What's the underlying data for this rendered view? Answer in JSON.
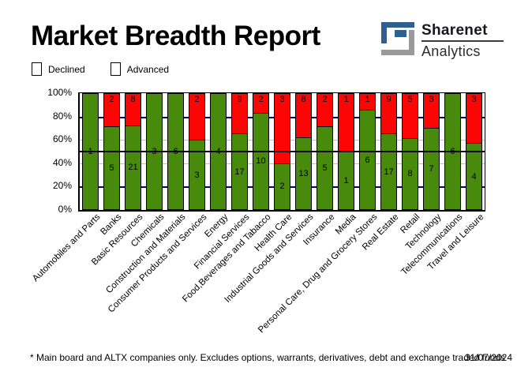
{
  "header": {
    "title": "Market Breadth Report",
    "logo": {
      "name": "Sharenet",
      "sub": "Analytics",
      "mark_blue": "#2e5f8e",
      "mark_gray": "#9a9a9a"
    }
  },
  "legend": {
    "items": [
      {
        "label": "Declined",
        "color": "#fb0505"
      },
      {
        "label": "Advanced",
        "color": "#478a0c"
      }
    ]
  },
  "chart_data": {
    "type": "bar",
    "stacked": true,
    "unit": "percent of companies (advanced vs declined), segment labels show counts",
    "categories": [
      "Automobiles and Parts",
      "Banks",
      "Basic Resources",
      "Chemicals",
      "Construction and Materials",
      "Consumer Products and Services",
      "Energy",
      "Financial Services",
      "Food,Beverages and Tabacco",
      "Health Care",
      "Industrial Goods and Services",
      "Insurance",
      "Media",
      "Personal Care, Drug and Grocery Stores",
      "Real Estate",
      "Retail",
      "Technology",
      "Telecommunications",
      "Travel and Leisure"
    ],
    "series": [
      {
        "name": "Declined",
        "color": "#fb0505",
        "values": [
          0,
          2,
          8,
          0,
          0,
          2,
          0,
          9,
          2,
          3,
          8,
          2,
          1,
          1,
          9,
          5,
          3,
          0,
          3
        ]
      },
      {
        "name": "Advanced",
        "color": "#478a0c",
        "values": [
          1,
          5,
          21,
          3,
          6,
          3,
          4,
          17,
          10,
          2,
          13,
          5,
          1,
          6,
          17,
          8,
          7,
          6,
          4
        ]
      }
    ],
    "ylim": [
      0,
      100
    ],
    "ytick_labels": [
      "0%",
      "20%",
      "40%",
      "60%",
      "80%",
      "100%"
    ],
    "gridlines": [
      {
        "percent": 20,
        "color": "#000080",
        "thickness": 2
      },
      {
        "percent": 40,
        "color": "#c0c0c0",
        "thickness": 1
      },
      {
        "percent": 60,
        "color": "#c0c0c0",
        "thickness": 1
      },
      {
        "percent": 80,
        "color": "#000080",
        "thickness": 2
      }
    ],
    "midline_percent": 50,
    "midline_color": "#000000",
    "legend_position": "top-left",
    "grid": "partial"
  },
  "footer": {
    "note": "* Main board and ALTX companies only. Excludes options, warrants, derivatives, debt and exchange traded funds",
    "date": "31/07/2024"
  }
}
